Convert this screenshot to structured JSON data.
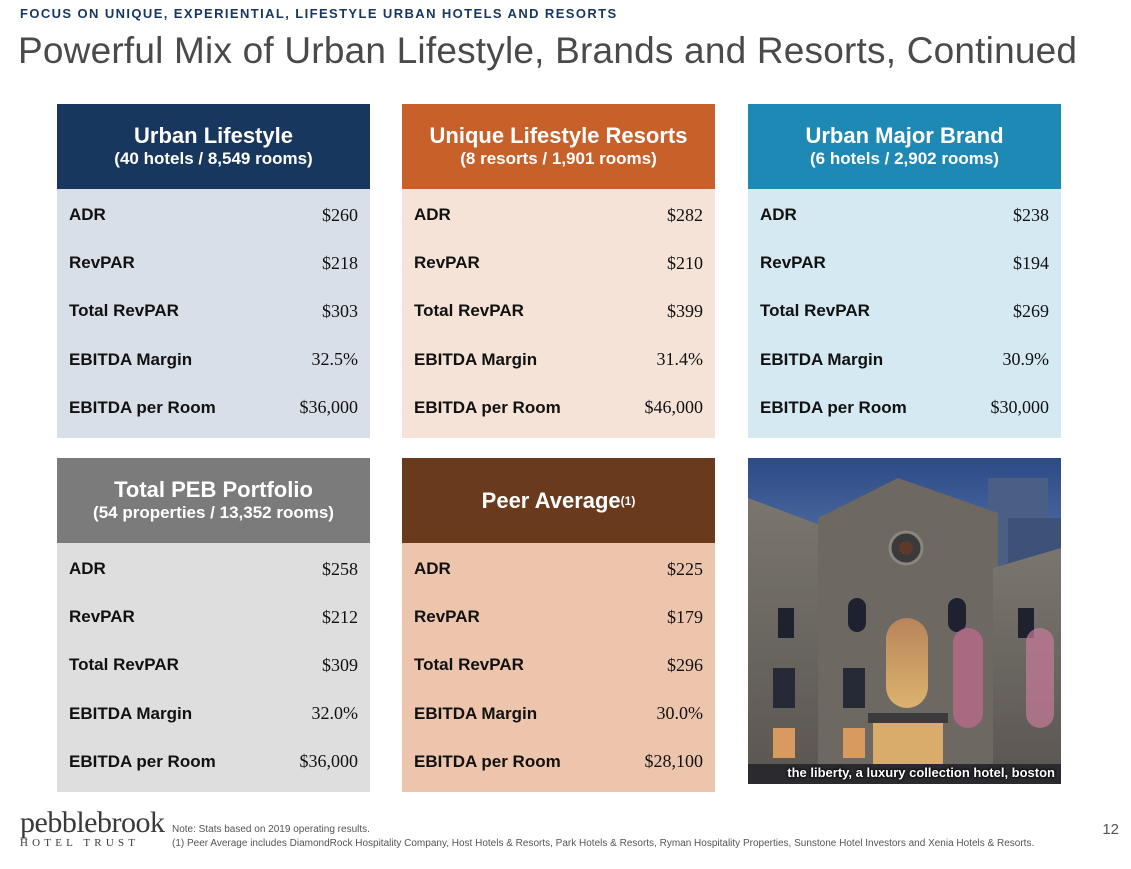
{
  "kicker": "FOCUS ON UNIQUE, EXPERIENTIAL, LIFESTYLE URBAN HOTELS AND RESORTS",
  "title": "Powerful Mix of Urban Lifestyle, Brands and Resorts, Continued",
  "panels": {
    "urban_lifestyle": {
      "title": "Urban Lifestyle",
      "subtitle": "(40 hotels / 8,549 rooms)",
      "color": "#17375e",
      "rows": [
        {
          "label": "ADR",
          "value": "$260"
        },
        {
          "label": "RevPAR",
          "value": "$218"
        },
        {
          "label": "Total RevPAR",
          "value": "$303"
        },
        {
          "label": "EBITDA Margin",
          "value": "32.5%"
        },
        {
          "label": "EBITDA per Room",
          "value": "$36,000"
        }
      ]
    },
    "unique_lifestyle_resorts": {
      "title": "Unique Lifestyle Resorts",
      "subtitle": "(8 resorts / 1,901 rooms)",
      "color": "#c8602a",
      "rows": [
        {
          "label": "ADR",
          "value": "$282"
        },
        {
          "label": "RevPAR",
          "value": "$210"
        },
        {
          "label": "Total RevPAR",
          "value": "$399"
        },
        {
          "label": "EBITDA Margin",
          "value": "31.4%"
        },
        {
          "label": "EBITDA per Room",
          "value": "$46,000"
        }
      ]
    },
    "urban_major_brand": {
      "title": "Urban Major Brand",
      "subtitle": "(6 hotels / 2,902 rooms)",
      "color": "#1f89b5",
      "rows": [
        {
          "label": "ADR",
          "value": "$238"
        },
        {
          "label": "RevPAR",
          "value": "$194"
        },
        {
          "label": "Total RevPAR",
          "value": "$269"
        },
        {
          "label": "EBITDA Margin",
          "value": "30.9%"
        },
        {
          "label": "EBITDA per Room",
          "value": "$30,000"
        }
      ]
    },
    "total_peb_portfolio": {
      "title": "Total PEB Portfolio",
      "subtitle": "(54 properties / 13,352 rooms)",
      "color": "#7b7b7b",
      "rows": [
        {
          "label": "ADR",
          "value": "$258"
        },
        {
          "label": "RevPAR",
          "value": "$212"
        },
        {
          "label": "Total RevPAR",
          "value": "$309"
        },
        {
          "label": "EBITDA Margin",
          "value": "32.0%"
        },
        {
          "label": "EBITDA per Room",
          "value": "$36,000"
        }
      ]
    },
    "peer_average": {
      "title": "Peer Average",
      "superscript": "(1)",
      "color": "#6a3a1c",
      "rows": [
        {
          "label": "ADR",
          "value": "$225"
        },
        {
          "label": "RevPAR",
          "value": "$179"
        },
        {
          "label": "Total RevPAR",
          "value": "$296"
        },
        {
          "label": "EBITDA Margin",
          "value": "30.0%"
        },
        {
          "label": "EBITDA per Room",
          "value": "$28,100"
        }
      ]
    }
  },
  "photo": {
    "caption": "the liberty, a luxury collection hotel, boston"
  },
  "footer": {
    "logo_word": "pebblebrook",
    "logo_sub": "HOTEL TRUST",
    "note": "Note: Stats based on 2019 operating results.",
    "footnote": "(1) Peer Average includes DiamondRock Hospitality Company, Host Hotels & Resorts, Park Hotels & Resorts, Ryman Hospitality Properties, Sunstone Hotel Investors and Xenia Hotels & Resorts.",
    "page_number": "12"
  }
}
